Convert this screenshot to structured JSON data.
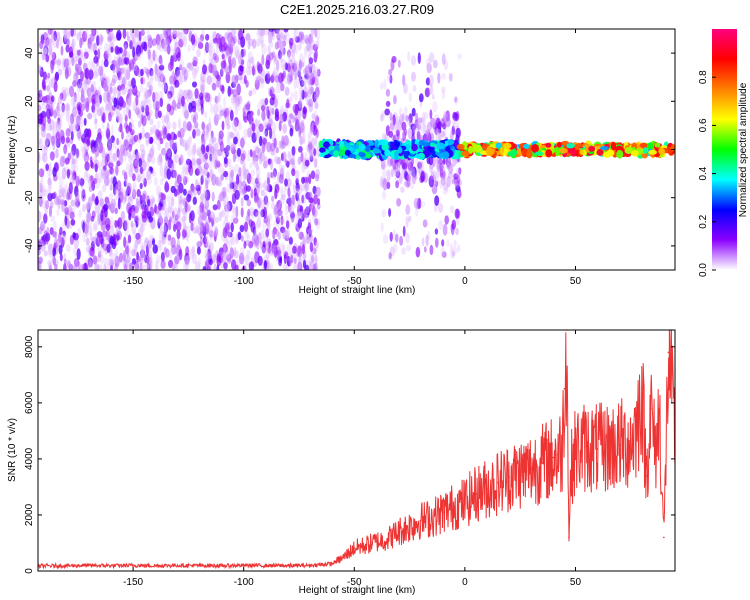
{
  "title": "C2E1.2025.216.03.27.R09",
  "chart_data": [
    {
      "type": "heatmap",
      "xlabel": "Height of straight line (km)",
      "ylabel": "Frequency (Hz)",
      "xlim": [
        -193,
        95
      ],
      "ylim": [
        -50,
        50
      ],
      "x_ticks": [
        -150,
        -100,
        -50,
        0,
        50
      ],
      "y_ticks": [
        -40,
        -20,
        0,
        20,
        40
      ],
      "colorbar": {
        "label": "Normalized spectral amplitude",
        "range": [
          0,
          1
        ],
        "ticks": [
          0.0,
          0.2,
          0.4,
          0.6,
          0.8
        ],
        "tick_labels": [
          "0.0",
          "0.2",
          "0.4",
          "0.6",
          "0.8"
        ],
        "colormap": [
          "#ffffff",
          "#8b00ff",
          "#0000ff",
          "#00ffff",
          "#00ff00",
          "#ffff00",
          "#ff8000",
          "#ff0000",
          "#ff0080"
        ]
      },
      "regions": [
        {
          "x_range": [
            -193,
            -66
          ],
          "freq_range": [
            -50,
            50
          ],
          "pattern": "broadband noise",
          "amplitude": [
            0.0,
            0.15
          ]
        },
        {
          "x_range": [
            -66,
            -38
          ],
          "freq_range": [
            -3,
            3
          ],
          "pattern": "narrow band",
          "amplitude": [
            0.1,
            0.45
          ]
        },
        {
          "x_range": [
            -38,
            -2
          ],
          "freq_range": [
            -45,
            40
          ],
          "pattern": "scattered",
          "amplitude": [
            0.0,
            0.15
          ]
        },
        {
          "x_range": [
            -38,
            -2
          ],
          "freq_range": [
            -3,
            3
          ],
          "pattern": "narrow band",
          "amplitude": [
            0.1,
            0.4
          ]
        },
        {
          "x_range": [
            -2,
            95
          ],
          "freq_range": [
            -2,
            2
          ],
          "pattern": "narrow band",
          "amplitude": [
            0.3,
            0.95
          ]
        }
      ]
    },
    {
      "type": "line",
      "xlabel": "Height of straight line (km)",
      "ylabel": "SNR (10 * v/v)",
      "xlim": [
        -193,
        95
      ],
      "ylim": [
        0,
        8600
      ],
      "x_ticks": [
        -150,
        -100,
        -50,
        0,
        50
      ],
      "y_ticks": [
        0,
        2000,
        4000,
        6000,
        8000
      ],
      "color": "#ee3333",
      "series": [
        {
          "x": [
            -193,
            -180,
            -170,
            -160,
            -150,
            -140,
            -130,
            -120,
            -110,
            -100,
            -90,
            -80,
            -70,
            -60,
            -55,
            -50,
            -45,
            -40,
            -35,
            -30,
            -25,
            -20,
            -15,
            -10,
            -5,
            0,
            5,
            10,
            15,
            20,
            25,
            30,
            35,
            40,
            42,
            44,
            45,
            46,
            47,
            48,
            50,
            55,
            60,
            65,
            70,
            75,
            78,
            80,
            82,
            84,
            86,
            88,
            90,
            92,
            95
          ],
          "y": [
            180,
            190,
            200,
            190,
            200,
            190,
            200,
            195,
            190,
            200,
            195,
            190,
            200,
            260,
            480,
            820,
            920,
            1050,
            1150,
            1400,
            1600,
            1800,
            1900,
            2100,
            2300,
            2450,
            2750,
            2950,
            3150,
            3350,
            3500,
            3650,
            3850,
            4050,
            4150,
            4300,
            6500,
            8600,
            1200,
            3600,
            4300,
            4450,
            4350,
            4400,
            4500,
            4600,
            5200,
            6500,
            3400,
            5800,
            4200,
            5600,
            1200,
            7800,
            4700
          ]
        }
      ]
    }
  ]
}
